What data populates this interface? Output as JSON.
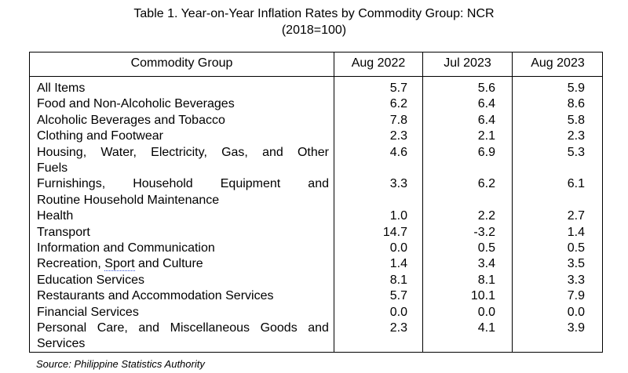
{
  "title": {
    "line1": "Table 1. Year-on-Year Inflation Rates by Commodity Group: NCR",
    "line2": "(2018=100)"
  },
  "table": {
    "headers": [
      "Commodity Group",
      "Aug 2022",
      "Jul 2023",
      "Aug 2023"
    ],
    "rows": [
      {
        "group": "All Items",
        "v": [
          "5.7",
          "5.6",
          "5.9"
        ]
      },
      {
        "group": "Food and Non-Alcoholic Beverages",
        "v": [
          "6.2",
          "6.4",
          "8.6"
        ]
      },
      {
        "group": "Alcoholic Beverages and Tobacco",
        "v": [
          "7.8",
          "6.4",
          "5.8"
        ]
      },
      {
        "group": "Clothing and Footwear",
        "v": [
          "2.3",
          "2.1",
          "2.3"
        ]
      },
      {
        "group": "Housing, Water, Electricity, Gas, and Other Fuels",
        "lines": [
          "Housing, Water, Electricity, Gas, and Other",
          "Fuels"
        ],
        "v": [
          "4.6",
          "6.9",
          "5.3"
        ]
      },
      {
        "group": "Furnishings, Household Equipment and Routine Household Maintenance",
        "lines": [
          "Furnishings, Household Equipment and",
          "Routine Household Maintenance"
        ],
        "v": [
          "3.3",
          "6.2",
          "6.1"
        ]
      },
      {
        "group": "Health",
        "v": [
          "1.0",
          "2.2",
          "2.7"
        ]
      },
      {
        "group": "Transport",
        "v": [
          "14.7",
          "-3.2",
          "1.4"
        ]
      },
      {
        "group": "Information and Communication",
        "v": [
          "0.0",
          "0.5",
          "0.5"
        ]
      },
      {
        "group": "Recreation, Sport and Culture",
        "v": [
          "1.4",
          "3.4",
          "3.5"
        ]
      },
      {
        "group": "Education Services",
        "v": [
          "8.1",
          "8.1",
          "3.3"
        ]
      },
      {
        "group": "Restaurants and Accommodation Services",
        "v": [
          "5.7",
          "10.1",
          "7.9"
        ]
      },
      {
        "group": "Financial Services",
        "v": [
          "0.0",
          "0.0",
          "0.0"
        ]
      },
      {
        "group": "Personal Care, and Miscellaneous Goods and Services",
        "lines": [
          "Personal Care, and Miscellaneous Goods and",
          "Services"
        ],
        "v": [
          "2.3",
          "4.1",
          "3.9"
        ]
      }
    ]
  },
  "source": "Source: Philippine Statistics Authority"
}
